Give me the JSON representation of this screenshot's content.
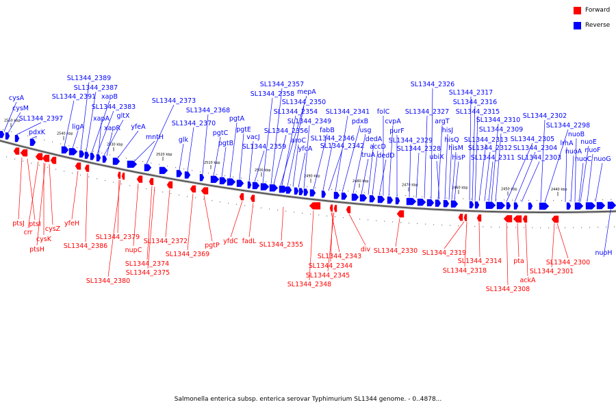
{
  "legend": {
    "forward": {
      "label": "Forward",
      "color": "#ff0000"
    },
    "reverse": {
      "label": "Reverse",
      "color": "#0000ff"
    }
  },
  "caption": "Salmonella enterica subsp. enterica serovar Typhimurium SL1344 genome. - 0..4878...",
  "scale": {
    "ticks": [
      {
        "kbp": 2550,
        "label": "2550 kbp"
      },
      {
        "kbp": 2540,
        "label": "2540 kbp"
      },
      {
        "kbp": 2530,
        "label": "2530 kbp"
      },
      {
        "kbp": 2520,
        "label": "2520 kbp"
      },
      {
        "kbp": 2510,
        "label": "2510 kbp"
      },
      {
        "kbp": 2500,
        "label": "2500 kbp"
      },
      {
        "kbp": 2490,
        "label": "2490 kbp"
      },
      {
        "kbp": 2480,
        "label": "2480 kbp"
      },
      {
        "kbp": 2470,
        "label": "2470 kbp"
      },
      {
        "kbp": 2460,
        "label": "2460 kbp"
      },
      {
        "kbp": 2450,
        "label": "2450 kbp"
      },
      {
        "kbp": 2440,
        "label": "2440 kbp"
      }
    ]
  },
  "reverse_labels": [
    "cysA",
    "cysM",
    "SL1344_2397",
    "pdxK",
    "SL1344_2391",
    "ligA",
    "SL1344_2389",
    "SL1344_2387",
    "xapB",
    "SL1344_2383",
    "gltX",
    "xapA",
    "xapR",
    "yfeA",
    "mntH",
    "glk",
    "SL1344_2373",
    "SL1344_2370",
    "SL1344_2368",
    "pgtC",
    "pgtB",
    "pgtA",
    "pgtE",
    "vacJ",
    "SL1344_2359",
    "SL1344_2358",
    "SL1344_2357",
    "mepA",
    "SL1344_2356",
    "SL1344_2354",
    "SL1344_2350",
    "aroC",
    "yfcA",
    "SL1344_2349",
    "fabB",
    "SL1344_2346",
    "SL1344_2342",
    "SL1344_2341",
    "pdxB",
    "usg",
    "truA",
    "dedA",
    "accD",
    "dedD",
    "folC",
    "cvpA",
    "purF",
    "SL1344_2329",
    "SL1344_2328",
    "SL1344_2327",
    "SL1344_2326",
    "argT",
    "ubiX",
    "hisJ",
    "hisQ",
    "hisM",
    "hisP",
    "SL1344_2317",
    "SL1344_2316",
    "SL1344_2315",
    "SL1344_2313",
    "SL1344_2312",
    "SL1344_2311",
    "SL1344_2310",
    "SL1344_2309",
    "SL1344_2305",
    "SL1344_2304",
    "SL1344_2303",
    "SL1344_2302",
    "SL1344_2298",
    "lrhA",
    "nuoA",
    "nuoB",
    "nuoE",
    "nuoF",
    "nuoC",
    "nuoG",
    "nuoH"
  ],
  "forward_labels": [
    "ptsJ",
    "ptsI",
    "crr",
    "cysK",
    "cysZ",
    "ptsH",
    "yfeH",
    "SL1344_2386",
    "SL1344_2379",
    "nupC",
    "SL1344_2380",
    "SL1344_2374",
    "SL1344_2375",
    "SL1344_2372",
    "SL1344_2369",
    "pgtP",
    "yfdC",
    "fadL",
    "SL1344_2355",
    "SL1344_2343",
    "SL1344_2344",
    "SL1344_2345",
    "SL1344_2348",
    "div",
    "SL1344_2330",
    "SL1344_2319",
    "SL1344_2314",
    "SL1344_2318",
    "SL1344_2308",
    "pta",
    "ackA",
    "SL1344_2300",
    "SL1344_2301"
  ]
}
